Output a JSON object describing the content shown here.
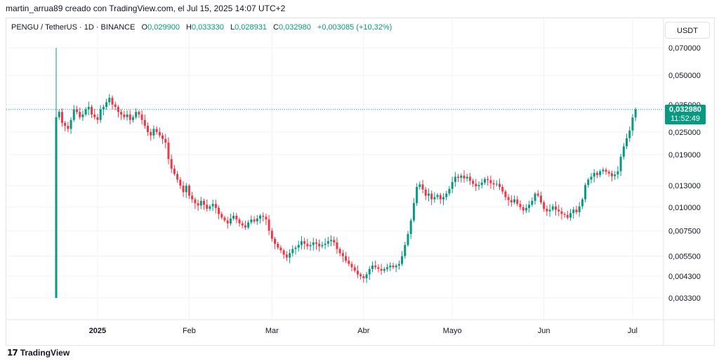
{
  "header": {
    "attribution": "martin_arrua89 creado con TradingView.com, el Jul 15, 2025 14:07 UTC+2"
  },
  "legend": {
    "symbol": "PENGU / TetherUS · 1D · BINANCE",
    "open_label": "O",
    "open_value": "0,029900",
    "high_label": "H",
    "high_value": "0,033330",
    "low_label": "L",
    "low_value": "0,028931",
    "close_label": "C",
    "close_value": "0,032980",
    "change": "+0,003085 (+10,32%)"
  },
  "currency_button": "USDT",
  "price_badge": {
    "price": "0,032980",
    "countdown": "11:52:49"
  },
  "footer": {
    "logo_mark": "17",
    "logo_text": "TradingView"
  },
  "colors": {
    "up": "#089981",
    "down": "#f23645",
    "grid": "#f0f3fa",
    "axis_text": "#131722"
  },
  "chart_data": {
    "type": "candlestick",
    "scale": "log",
    "y_ticks": [
      "0,070000",
      "0,050000",
      "0,035000",
      "0,025000",
      "0,019000",
      "0,013000",
      "0,010000",
      "0,007500",
      "0,005500",
      "0,004300",
      "0,003300"
    ],
    "y_tick_values": [
      0.07,
      0.05,
      0.035,
      0.025,
      0.019,
      0.013,
      0.01,
      0.0075,
      0.0055,
      0.0043,
      0.0033
    ],
    "x_ticks": [
      {
        "label": "2025",
        "day": 14,
        "bold": true
      },
      {
        "label": "Feb",
        "day": 45,
        "bold": false
      },
      {
        "label": "Mar",
        "day": 73,
        "bold": false
      },
      {
        "label": "Abr",
        "day": 104,
        "bold": false
      },
      {
        "label": "Mayo",
        "day": 134,
        "bold": false
      },
      {
        "label": "Jun",
        "day": 165,
        "bold": false
      },
      {
        "label": "Jul",
        "day": 195,
        "bold": false
      }
    ],
    "last_price": 0.03298,
    "closes": [
      0.03,
      0.032,
      0.028,
      0.027,
      0.026,
      0.029,
      0.033,
      0.032,
      0.03,
      0.031,
      0.033,
      0.034,
      0.031,
      0.03,
      0.029,
      0.033,
      0.034,
      0.036,
      0.038,
      0.035,
      0.034,
      0.032,
      0.031,
      0.03,
      0.031,
      0.029,
      0.03,
      0.032,
      0.031,
      0.029,
      0.027,
      0.025,
      0.024,
      0.026,
      0.025,
      0.024,
      0.023,
      0.022,
      0.018,
      0.016,
      0.015,
      0.014,
      0.013,
      0.012,
      0.013,
      0.0115,
      0.011,
      0.0105,
      0.0102,
      0.0108,
      0.0103,
      0.0098,
      0.0101,
      0.0104,
      0.0099,
      0.0092,
      0.0088,
      0.0085,
      0.0082,
      0.0087,
      0.009,
      0.0086,
      0.0082,
      0.008,
      0.0078,
      0.0083,
      0.0086,
      0.0084,
      0.0087,
      0.009,
      0.0089,
      0.0086,
      0.0075,
      0.0068,
      0.0064,
      0.0061,
      0.0059,
      0.0056,
      0.0054,
      0.0057,
      0.006,
      0.0061,
      0.0063,
      0.0066,
      0.0064,
      0.0062,
      0.0063,
      0.0065,
      0.0064,
      0.0062,
      0.0063,
      0.0064,
      0.0066,
      0.0067,
      0.0065,
      0.006,
      0.0057,
      0.0055,
      0.0052,
      0.005,
      0.0048,
      0.0046,
      0.0044,
      0.0043,
      0.0042,
      0.0044,
      0.0047,
      0.0049,
      0.0048,
      0.0047,
      0.0046,
      0.0047,
      0.0048,
      0.0049,
      0.0048,
      0.0049,
      0.005,
      0.0055,
      0.0063,
      0.0072,
      0.0085,
      0.0105,
      0.0128,
      0.0132,
      0.0124,
      0.0115,
      0.0118,
      0.011,
      0.0113,
      0.0116,
      0.011,
      0.0113,
      0.0118,
      0.0125,
      0.0136,
      0.0145,
      0.0143,
      0.0147,
      0.0142,
      0.0145,
      0.0138,
      0.0133,
      0.0129,
      0.0131,
      0.0135,
      0.0141,
      0.0139,
      0.0134,
      0.0132,
      0.0133,
      0.0128,
      0.0121,
      0.0113,
      0.0109,
      0.0106,
      0.011,
      0.0104,
      0.01,
      0.0096,
      0.0099,
      0.0103,
      0.0108,
      0.0118,
      0.0115,
      0.0106,
      0.0098,
      0.0095,
      0.0097,
      0.0101,
      0.0097,
      0.0095,
      0.0092,
      0.0091,
      0.0088,
      0.0093,
      0.0097,
      0.0094,
      0.0101,
      0.011,
      0.0131,
      0.014,
      0.0145,
      0.0152,
      0.0148,
      0.0155,
      0.0158,
      0.0154,
      0.0151,
      0.0146,
      0.0149,
      0.0155,
      0.0185,
      0.021,
      0.0232,
      0.0255,
      0.0299,
      0.03298
    ]
  }
}
